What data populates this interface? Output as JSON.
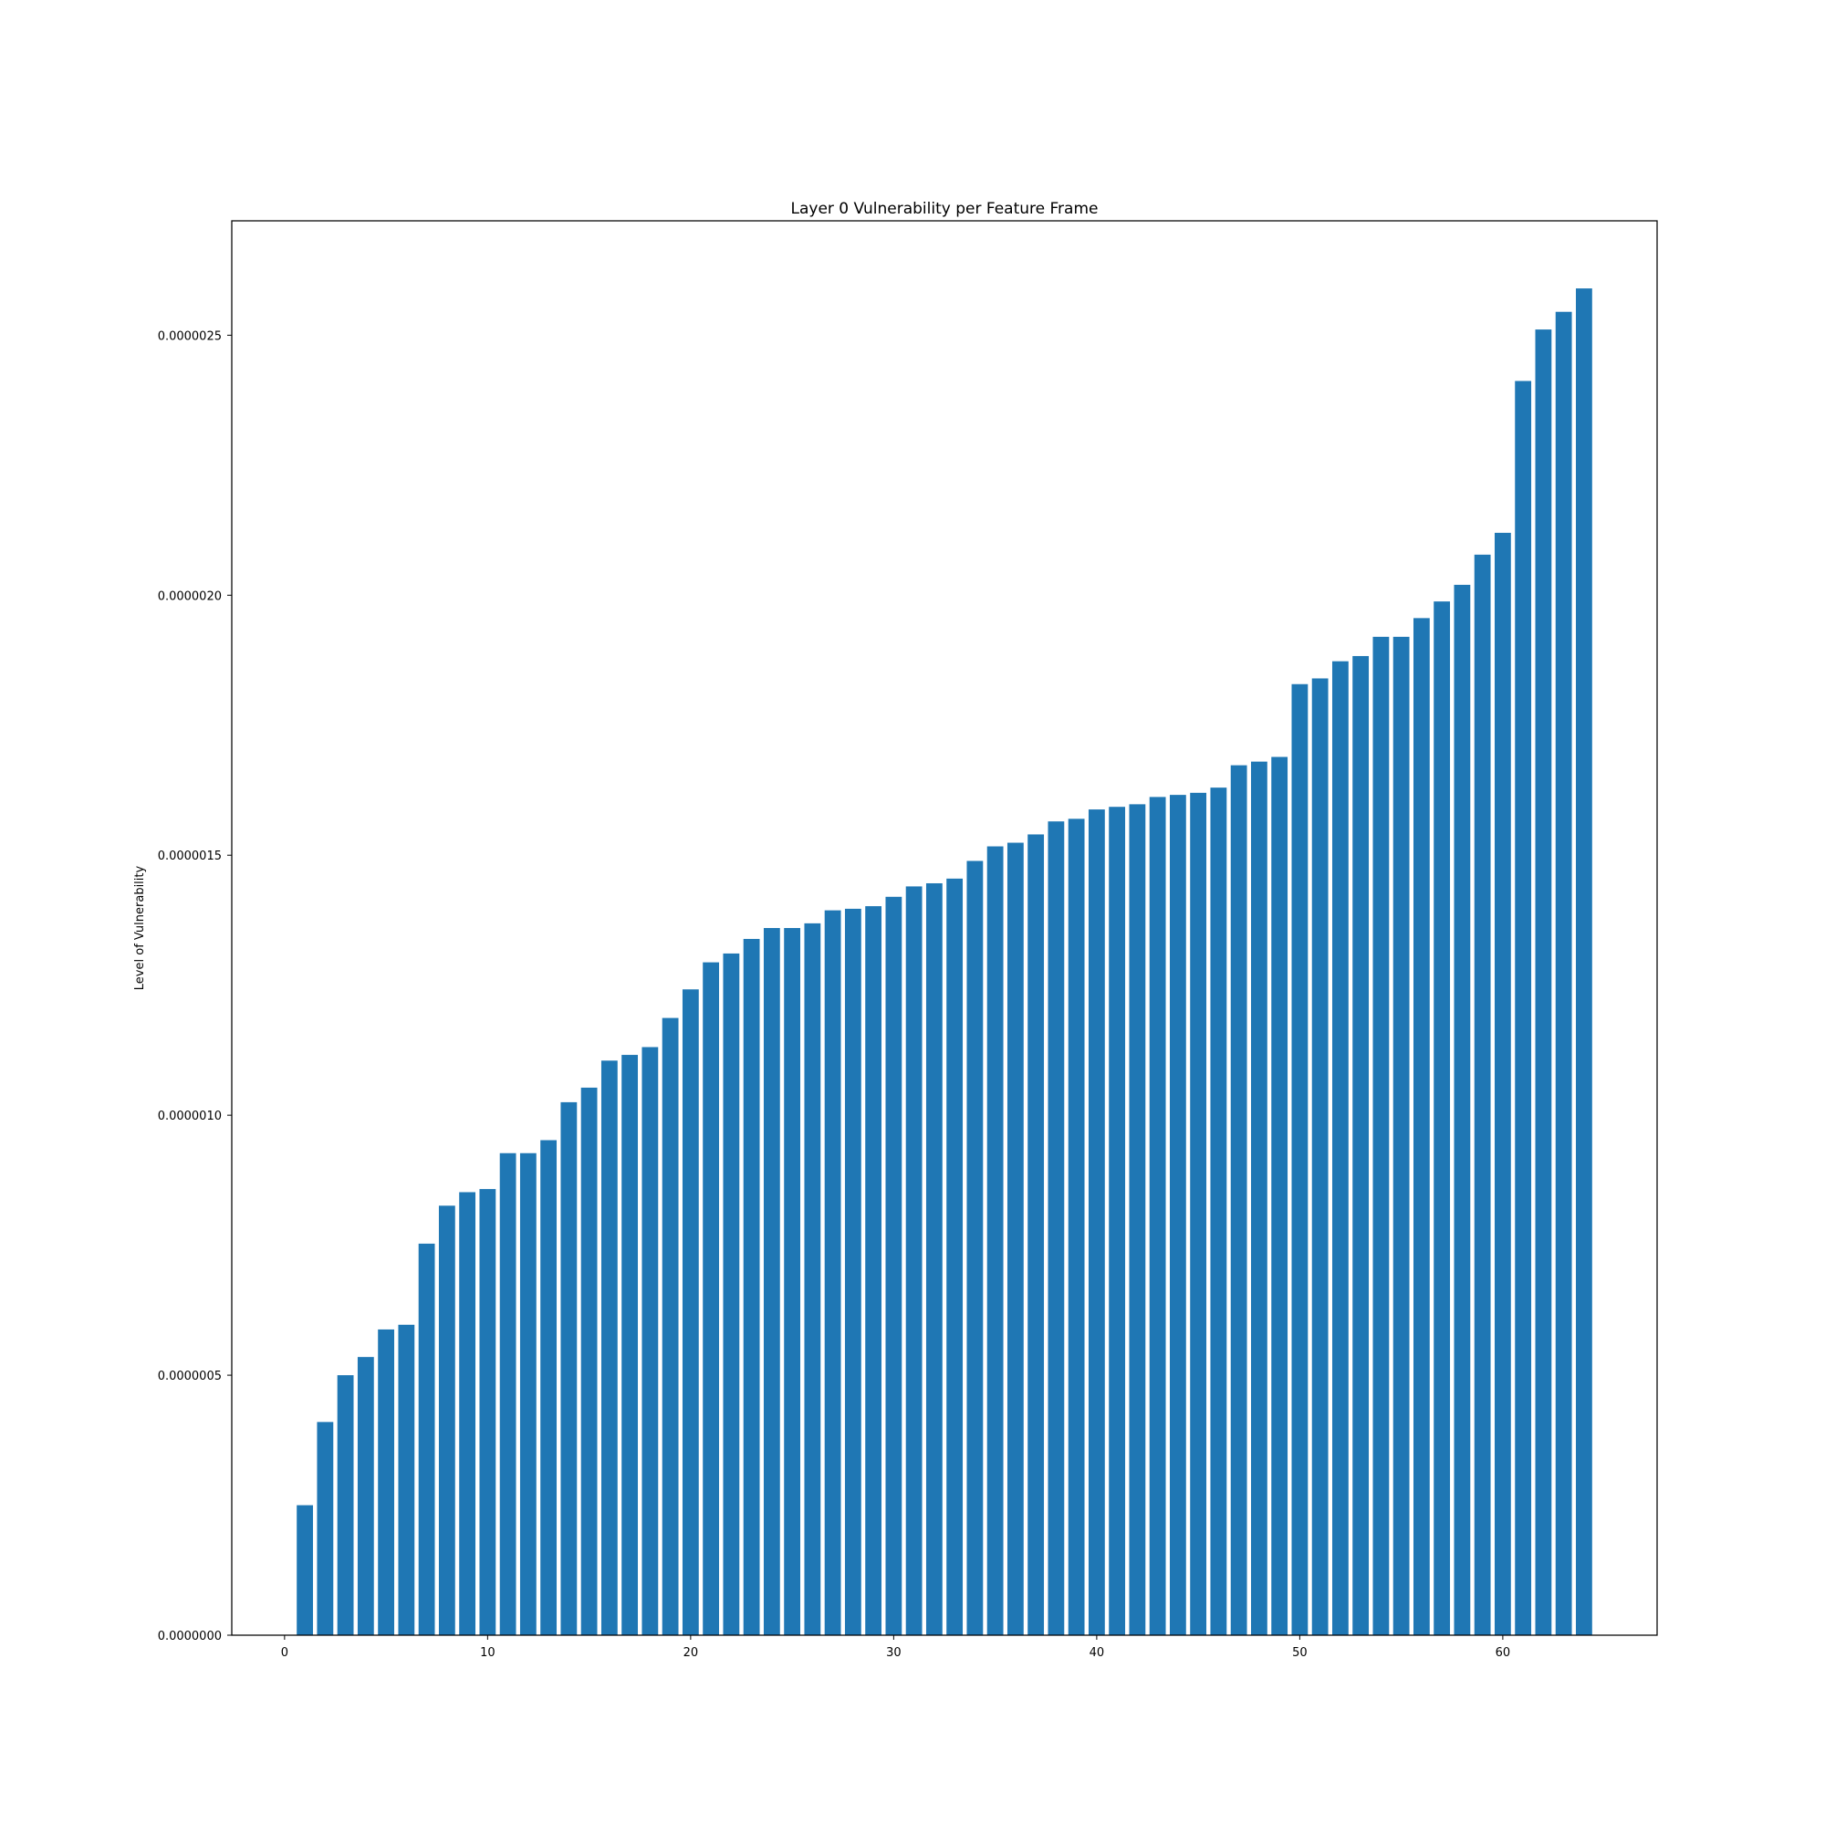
{
  "chart_data": {
    "type": "bar",
    "title": "Layer 0 Vulnerability per Feature Frame",
    "xlabel": "",
    "ylabel": "Level of Vulnerability",
    "xlim": [
      -2.6,
      67.6
    ],
    "ylim": [
      0,
      2.72e-06
    ],
    "xticks": [
      0,
      10,
      20,
      30,
      40,
      50,
      60
    ],
    "xtick_labels": [
      "0",
      "10",
      "20",
      "30",
      "40",
      "50",
      "60"
    ],
    "yticks": [
      0,
      5e-07,
      1e-06,
      1.5e-06,
      2e-06,
      2.5e-06
    ],
    "ytick_labels": [
      "0.0000000",
      "0.0000005",
      "0.0000010",
      "0.0000015",
      "0.0000020",
      "0.0000025"
    ],
    "grid": false,
    "legend": "none",
    "bar_color": "#1f77b4",
    "bar_width": 0.8,
    "x": [
      1,
      2,
      3,
      4,
      5,
      6,
      7,
      8,
      9,
      10,
      11,
      12,
      13,
      14,
      15,
      16,
      17,
      18,
      19,
      20,
      21,
      22,
      23,
      24,
      25,
      26,
      27,
      28,
      29,
      30,
      31,
      32,
      33,
      34,
      35,
      36,
      37,
      38,
      39,
      40,
      41,
      42,
      43,
      44,
      45,
      46,
      47,
      48,
      49,
      50,
      51,
      52,
      53,
      54,
      55,
      56,
      57,
      58,
      59,
      60,
      61,
      62,
      63,
      64
    ],
    "values": [
      2.5e-07,
      4.1e-07,
      5e-07,
      5.35e-07,
      5.88e-07,
      5.97e-07,
      7.53e-07,
      8.26e-07,
      8.52e-07,
      8.58e-07,
      9.27e-07,
      9.27e-07,
      9.52e-07,
      1.025e-06,
      1.053e-06,
      1.105e-06,
      1.116e-06,
      1.131e-06,
      1.187e-06,
      1.242e-06,
      1.294e-06,
      1.311e-06,
      1.339e-06,
      1.36e-06,
      1.36e-06,
      1.369e-06,
      1.394e-06,
      1.397e-06,
      1.402e-06,
      1.42e-06,
      1.44e-06,
      1.446e-06,
      1.455e-06,
      1.489e-06,
      1.517e-06,
      1.524e-06,
      1.54e-06,
      1.565e-06,
      1.57e-06,
      1.588e-06,
      1.593e-06,
      1.598e-06,
      1.612e-06,
      1.616e-06,
      1.62e-06,
      1.63e-06,
      1.673e-06,
      1.68e-06,
      1.689e-06,
      1.829e-06,
      1.84e-06,
      1.873e-06,
      1.883e-06,
      1.92e-06,
      1.92e-06,
      1.956e-06,
      1.988e-06,
      2.02e-06,
      2.078e-06,
      2.12e-06,
      2.412e-06,
      2.511e-06,
      2.545e-06,
      2.59e-06
    ]
  }
}
